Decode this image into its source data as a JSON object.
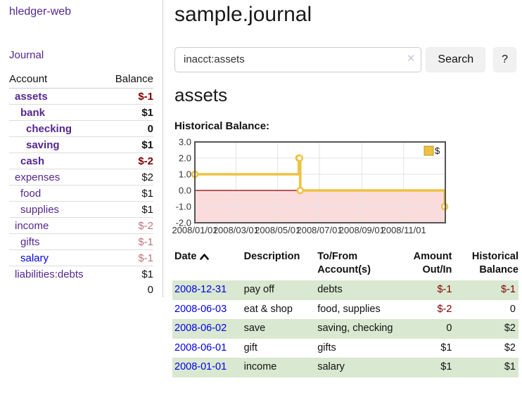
{
  "app": {
    "brand": "hledger-web"
  },
  "nav": {
    "journal": "Journal"
  },
  "sidebar": {
    "col_account": "Account",
    "col_balance": "Balance",
    "accounts": [
      {
        "name": "assets",
        "level": 1,
        "balance": "$-1",
        "bold": true,
        "bal_class": "neg-strong"
      },
      {
        "name": "bank",
        "level": 2,
        "balance": "$1",
        "bold": true,
        "bal_class": ""
      },
      {
        "name": "checking",
        "level": 3,
        "balance": "0",
        "bold": true,
        "bal_class": ""
      },
      {
        "name": "saving",
        "level": 3,
        "balance": "$1",
        "bold": true,
        "bal_class": ""
      },
      {
        "name": "cash",
        "level": 2,
        "balance": "$-2",
        "bold": true,
        "bal_class": "neg-strong"
      },
      {
        "name": "expenses",
        "level": 1,
        "balance": "$2",
        "bold": false,
        "bal_class": ""
      },
      {
        "name": "food",
        "level": 2,
        "balance": "$1",
        "bold": false,
        "bal_class": ""
      },
      {
        "name": "supplies",
        "level": 2,
        "balance": "$1",
        "bold": false,
        "bal_class": ""
      },
      {
        "name": "income",
        "level": 1,
        "balance": "$-2",
        "bold": false,
        "bal_class": "neg-soft"
      },
      {
        "name": "gifts",
        "level": 2,
        "balance": "$-1",
        "bold": false,
        "bal_class": "neg-soft"
      },
      {
        "name": "salary",
        "level": 2,
        "balance": "$-1",
        "bold": false,
        "bal_class": "neg-soft",
        "link_blue": true
      },
      {
        "name": "liabilities:debts",
        "level": 1,
        "balance": "$1",
        "bold": false,
        "bal_class": ""
      }
    ],
    "total": "0"
  },
  "header": {
    "title": "sample.journal"
  },
  "search": {
    "value": "inacct:assets",
    "button": "Search",
    "help": "?",
    "clear_icon": "✕"
  },
  "account_page": {
    "heading": "assets",
    "chart_title": "Historical Balance:"
  },
  "chart_data": {
    "type": "line",
    "steps": true,
    "title": "Historical Balance:",
    "legend": {
      "label": "$",
      "position": "top-right"
    },
    "series": [
      {
        "name": "$",
        "color": "#edc240",
        "points": [
          [
            "2008-01-01",
            1
          ],
          [
            "2008-06-01",
            2
          ],
          [
            "2008-06-02",
            2
          ],
          [
            "2008-06-03",
            0
          ],
          [
            "2008-12-31",
            -1
          ]
        ]
      }
    ],
    "xlim": [
      "2008-01-01",
      "2009-01-01"
    ],
    "ylim": [
      -2,
      3
    ],
    "y_ticks": [
      {
        "v": 3,
        "label": "3.0"
      },
      {
        "v": 2,
        "label": "2.0"
      },
      {
        "v": 1,
        "label": "1.0"
      },
      {
        "v": 0,
        "label": "0.0"
      },
      {
        "v": -1,
        "label": "-1.0"
      },
      {
        "v": -2,
        "label": "-2.0"
      }
    ],
    "x_ticks": [
      {
        "date": "2008-01-01",
        "label": "2008/01/01"
      },
      {
        "date": "2008-03-01",
        "label": "2008/03/01"
      },
      {
        "date": "2008-05-01",
        "label": "2008/05/01"
      },
      {
        "date": "2008-07-01",
        "label": "2008/07/01"
      },
      {
        "date": "2008-09-01",
        "label": "2008/09/01"
      },
      {
        "date": "2008-11-01",
        "label": "2008/11/01"
      }
    ],
    "grid": true,
    "colors": {
      "line": "#edc240",
      "marker_fill": "#ffffff",
      "negative_region": "#fbdcdc",
      "zero_line": "#8b0000",
      "grid": "#e3e3e3",
      "border": "#545454"
    }
  },
  "register": {
    "columns": [
      {
        "lines": [
          "Date"
        ],
        "align": "left",
        "sort": "asc"
      },
      {
        "lines": [
          "Description"
        ],
        "align": "left"
      },
      {
        "lines": [
          "To/From",
          "Account(s)"
        ],
        "align": "left"
      },
      {
        "lines": [
          "Amount",
          "Out/In"
        ],
        "align": "right"
      },
      {
        "lines": [
          "Historical",
          "Balance"
        ],
        "align": "right"
      }
    ],
    "rows": [
      {
        "date": "2008-12-31",
        "description": "pay off",
        "accounts": "debts",
        "amount": "$-1",
        "balance": "$-1",
        "amount_neg": true,
        "balance_neg": true,
        "shaded": true
      },
      {
        "date": "2008-06-03",
        "description": "eat & shop",
        "accounts": "food, supplies",
        "amount": "$-2",
        "balance": "0",
        "amount_neg": true,
        "balance_neg": false,
        "shaded": false
      },
      {
        "date": "2008-06-02",
        "description": "save",
        "accounts": "saving, checking",
        "amount": "0",
        "balance": "$2",
        "amount_neg": false,
        "balance_neg": false,
        "shaded": true
      },
      {
        "date": "2008-06-01",
        "description": "gift",
        "accounts": "gifts",
        "amount": "$1",
        "balance": "$2",
        "amount_neg": false,
        "balance_neg": false,
        "shaded": false
      },
      {
        "date": "2008-01-01",
        "description": "income",
        "accounts": "salary",
        "amount": "$1",
        "balance": "$1",
        "amount_neg": false,
        "balance_neg": false,
        "shaded": true
      }
    ]
  },
  "colors": {
    "link_purple": "#54278e",
    "link_blue": "#0000e8",
    "neg_strong": "#800000",
    "neg_soft": "#c0737b",
    "row_green": "#d9e8d0",
    "accent_gold": "#edc240"
  }
}
